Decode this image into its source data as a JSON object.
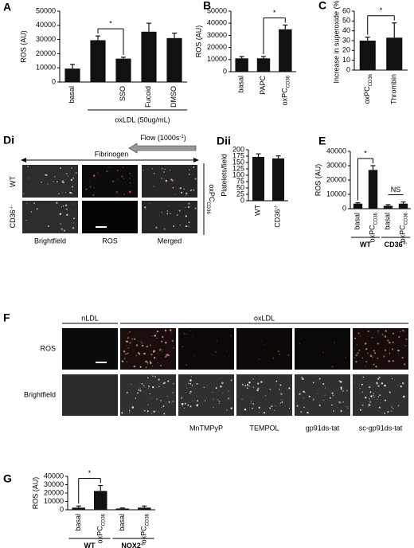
{
  "chart_data": [
    {
      "type": "bar",
      "panel": "A",
      "ylabel": "ROS (AU)",
      "categories": [
        "basal",
        null,
        "SSO",
        "Fucoid",
        "DMSO"
      ],
      "values": [
        9500,
        29500,
        16500,
        35500,
        31000
      ],
      "errors": [
        3000,
        3000,
        1000,
        6000,
        3500
      ],
      "color": "#111111",
      "ylim": [
        0,
        50000
      ],
      "yticks": [
        0,
        10000,
        20000,
        30000,
        40000,
        50000
      ],
      "annotation": "*",
      "group_label": "oxLDL (50ug/mL)"
    },
    {
      "type": "bar",
      "panel": "B",
      "ylabel": "ROS (AU)",
      "categories": [
        "basal",
        "PAPC",
        "oxPC"
      ],
      "category_subscripts": [
        null,
        null,
        "CD36"
      ],
      "values": [
        11000,
        11000,
        35000
      ],
      "errors": [
        1500,
        1500,
        3500
      ],
      "color": "#111111",
      "ylim": [
        0,
        50000
      ],
      "yticks": [
        0,
        10000,
        20000,
        30000,
        40000,
        50000
      ],
      "annotation": "*"
    },
    {
      "type": "bar",
      "panel": "C",
      "ylabel": "Increase in superoxide (%)",
      "categories": [
        "oxPC",
        "Thrombin"
      ],
      "category_subscripts": [
        "CD36",
        null
      ],
      "values": [
        30,
        33
      ],
      "errors": [
        3.5,
        15
      ],
      "color": "#111111",
      "ylim": [
        0,
        60
      ],
      "yticks": [
        0,
        10,
        20,
        30,
        40,
        50,
        60
      ],
      "annotation": "*"
    },
    {
      "type": "bar",
      "panel": "Dii",
      "ylabel": "Platelets/field",
      "categories": [
        "WT",
        "CD36"
      ],
      "category_superscripts": [
        null,
        "-/-"
      ],
      "values": [
        172,
        166
      ],
      "errors": [
        12,
        10
      ],
      "color": "#111111",
      "ylim": [
        0,
        200
      ],
      "yticks": [
        0,
        25,
        50,
        75,
        100,
        125,
        150,
        175,
        200
      ]
    },
    {
      "type": "bar",
      "panel": "E",
      "ylabel": "ROS (AU)",
      "categories": [
        "basal",
        "oxPC",
        "basal",
        "oxPC"
      ],
      "category_subscripts": [
        null,
        "CD36",
        null,
        "CD36"
      ],
      "values": [
        3500,
        27000,
        2000,
        3500
      ],
      "errors": [
        600,
        3000,
        800,
        1200
      ],
      "color": "#111111",
      "ylim": [
        0,
        40000
      ],
      "yticks": [
        0,
        10000,
        20000,
        30000,
        40000
      ],
      "annotations": [
        "*",
        "NS"
      ],
      "groups": [
        "WT",
        "CD36"
      ],
      "group_superscripts": [
        null,
        "-/-"
      ]
    },
    {
      "type": "bar",
      "panel": "G",
      "ylabel": "ROS (AU)",
      "categories": [
        "basal",
        "oxPC",
        "basal",
        "oxPC"
      ],
      "category_subscripts": [
        null,
        "CD36",
        null,
        "CD36"
      ],
      "values": [
        2500,
        22500,
        1500,
        2500
      ],
      "errors": [
        2000,
        6500,
        700,
        2000
      ],
      "color": "#111111",
      "ylim": [
        0,
        40000
      ],
      "yticks": [
        0,
        10000,
        20000,
        30000,
        40000
      ],
      "annotation": "*",
      "groups": [
        "WT",
        "NOX2"
      ],
      "group_superscripts": [
        null,
        "-/-"
      ]
    }
  ],
  "image_panels": {
    "Di": {
      "panel": "Di",
      "flow": "Flow (1000s",
      "flow_sup": "-1",
      "flow_end": ")",
      "fibrinogen": "Fibrinogen",
      "rows": [
        {
          "label": "WT"
        },
        {
          "label": "CD36",
          "sup": "-/-"
        }
      ],
      "columns": [
        "Brightfield",
        "ROS",
        "Merged"
      ],
      "treatment": "oxPC",
      "treatment_sub": "CD36"
    },
    "F": {
      "panel": "F",
      "groups": [
        "nLDL",
        "oxLDL"
      ],
      "rows": [
        "ROS",
        "Brightfield"
      ],
      "treatments": [
        "MnTMPyP",
        "TEMPOL",
        "gp91ds-tat",
        "sc-gp91ds-tat"
      ]
    }
  }
}
